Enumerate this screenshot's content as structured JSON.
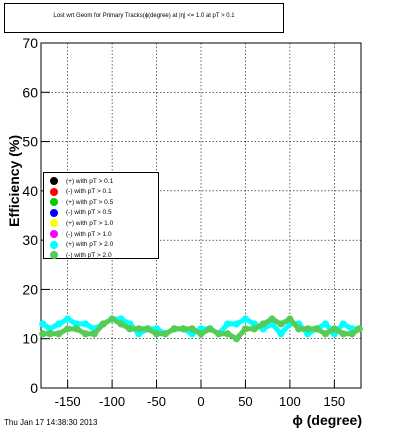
{
  "chart_data": {
    "type": "line",
    "title": "Lost wrt Geom for Primary Tracks(ϕ(degree) at |η| <= 1.0 at pT > 0.1",
    "xlabel": "ϕ (degree)",
    "ylabel": "Efficiency (%)",
    "xlim": [
      -180,
      180
    ],
    "ylim": [
      0,
      70
    ],
    "x_ticks": [
      -150,
      -100,
      -50,
      0,
      50,
      100,
      150
    ],
    "y_ticks": [
      0,
      10,
      20,
      30,
      40,
      50,
      60,
      70
    ],
    "grid": true,
    "legend_position": "left-middle",
    "series": [
      {
        "name": "(+) with pT > 0.1",
        "color": "#000000",
        "values": []
      },
      {
        "name": "(-) with pT > 0.1",
        "color": "#ff0000",
        "values": []
      },
      {
        "name": "(+) with pT > 0.5",
        "color": "#00cc00",
        "values": []
      },
      {
        "name": "(-) with pT > 0.5",
        "color": "#0000ff",
        "values": []
      },
      {
        "name": "(+) with pT > 1.0",
        "color": "#ffff00",
        "values": []
      },
      {
        "name": "(-) with pT > 1.0",
        "color": "#ff00ff",
        "values": []
      },
      {
        "name": "(+) with pT > 2.0",
        "color": "#00ffff",
        "x": [
          -178,
          -170,
          -160,
          -150,
          -140,
          -130,
          -120,
          -110,
          -100,
          -90,
          -80,
          -70,
          -60,
          -50,
          -40,
          -30,
          -20,
          -10,
          0,
          10,
          20,
          30,
          40,
          50,
          60,
          70,
          80,
          90,
          100,
          110,
          120,
          130,
          140,
          150,
          160,
          170,
          178
        ],
        "values": [
          13,
          12,
          13,
          14,
          13,
          13,
          12,
          13,
          14,
          14,
          13,
          11,
          12,
          12,
          11,
          12,
          12,
          11,
          12,
          12,
          11,
          13,
          13,
          14,
          13,
          12,
          13,
          11,
          13,
          13,
          11,
          12,
          13,
          11,
          13,
          12,
          12
        ]
      },
      {
        "name": "(-) with pT > 2.0",
        "color": "#55cc55",
        "x": [
          -178,
          -170,
          -160,
          -150,
          -140,
          -130,
          -120,
          -110,
          -100,
          -90,
          -80,
          -70,
          -60,
          -50,
          -40,
          -30,
          -20,
          -10,
          0,
          10,
          20,
          30,
          40,
          50,
          60,
          70,
          80,
          90,
          100,
          110,
          120,
          130,
          140,
          150,
          160,
          170,
          178
        ],
        "values": [
          11,
          11,
          11,
          12,
          12,
          11,
          11,
          13,
          14,
          13,
          12,
          12,
          12,
          11,
          11,
          12,
          12,
          12,
          11,
          12,
          11,
          11,
          10,
          12,
          12,
          13,
          14,
          13,
          14,
          12,
          12,
          12,
          11,
          12,
          11,
          11,
          12
        ]
      }
    ]
  },
  "footer": {
    "timestamp": "Thu Jan 17 14:38:30 2013"
  }
}
